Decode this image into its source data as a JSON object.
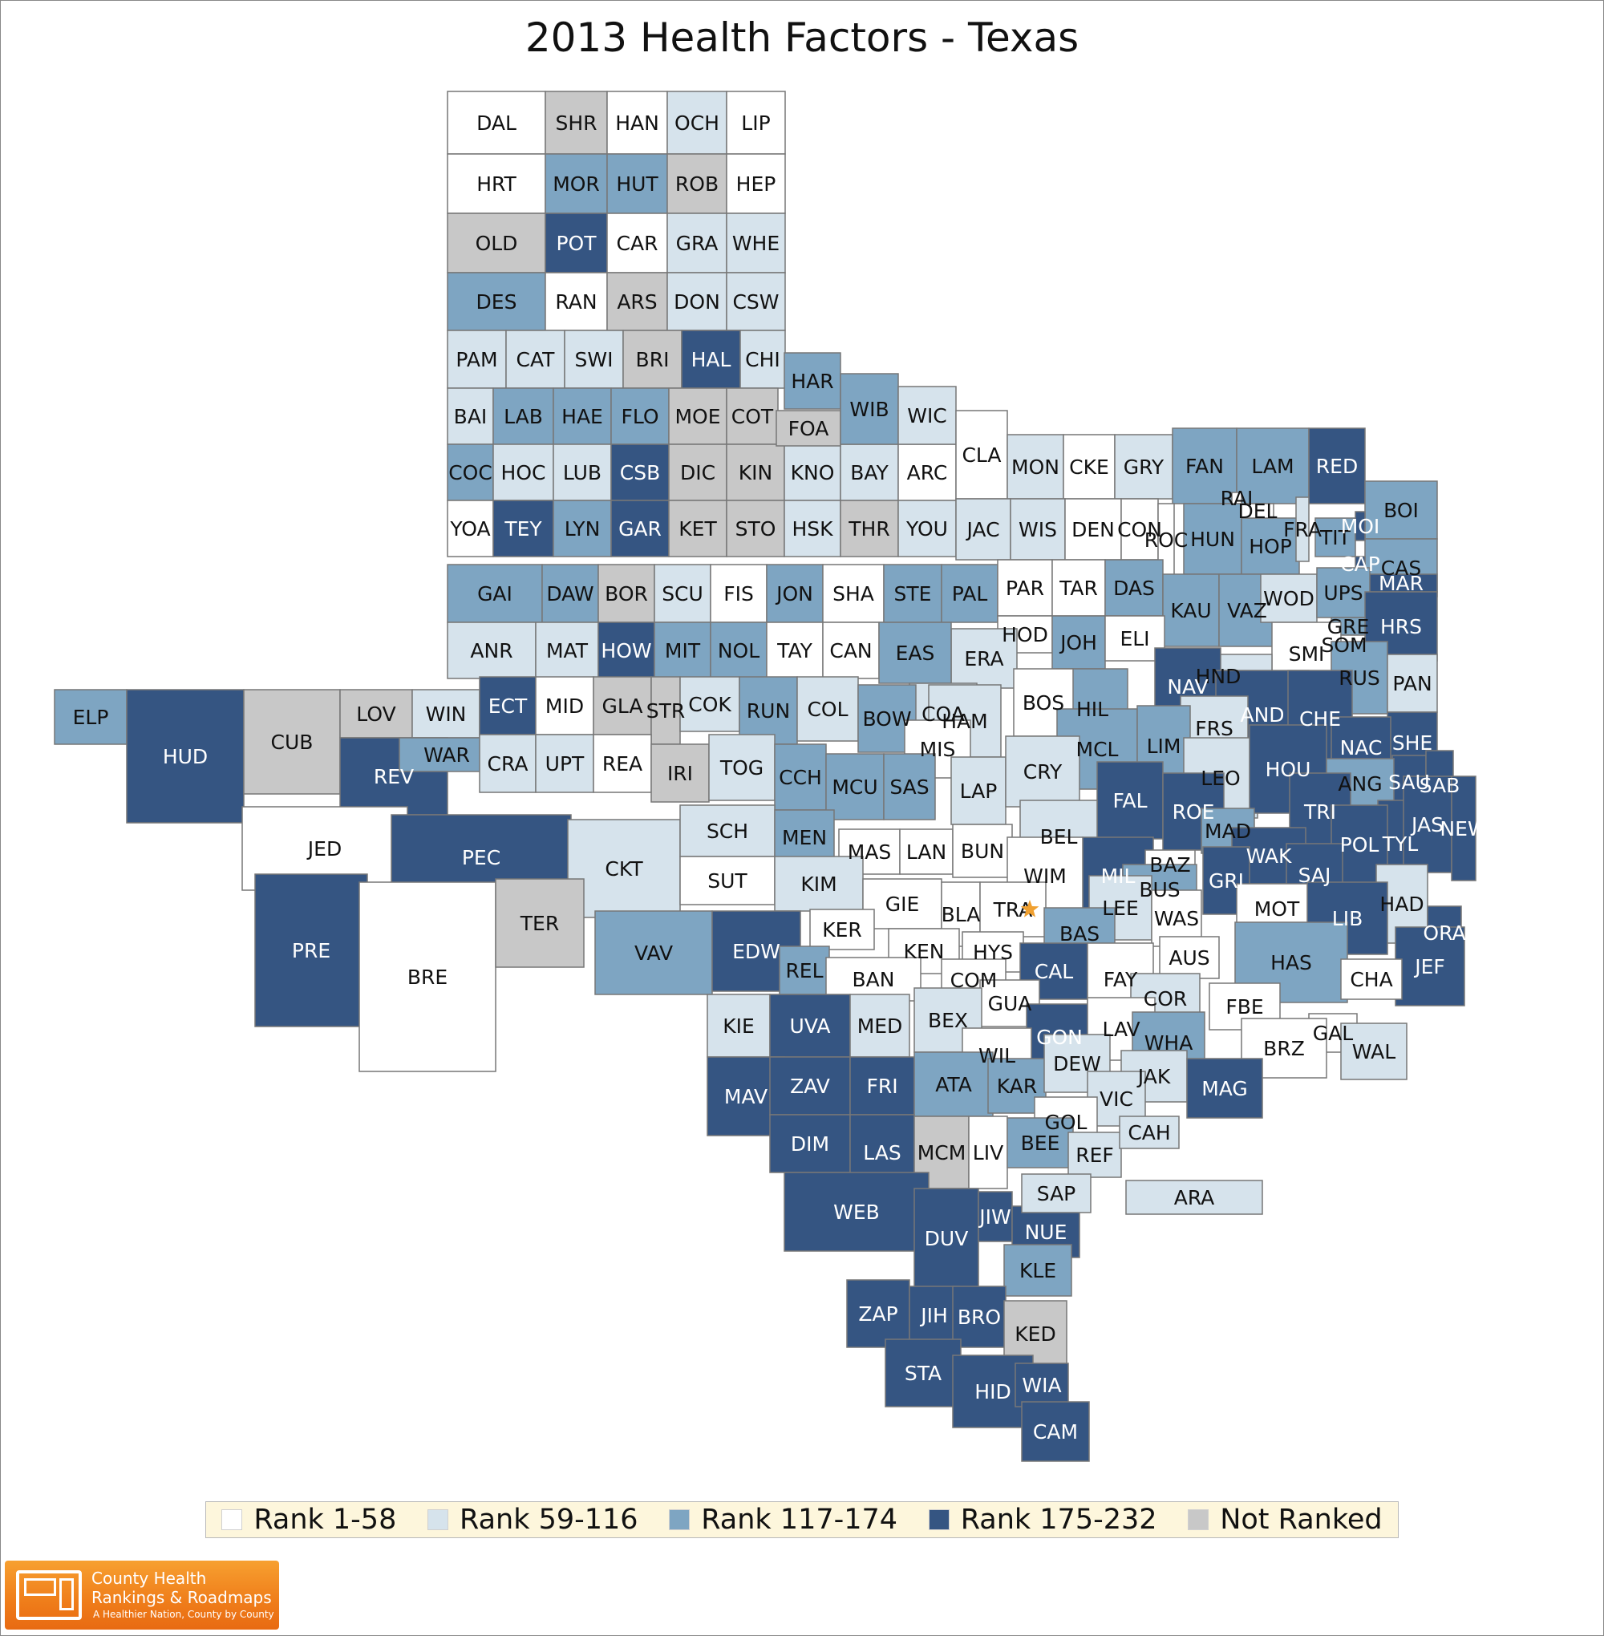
{
  "title": "2013 Health Factors - Texas",
  "colors": {
    "r1": "#ffffff",
    "r2": "#d6e3ec",
    "r3": "#7ea5c2",
    "r4": "#355582",
    "nr": "#c8c8c8",
    "border": "#777777"
  },
  "legend": [
    {
      "label": "Rank 1-58",
      "color": "#ffffff"
    },
    {
      "label": "Rank 59-116",
      "color": "#d6e3ec"
    },
    {
      "label": "Rank 117-174",
      "color": "#7ea5c2"
    },
    {
      "label": "Rank 175-232",
      "color": "#355582"
    },
    {
      "label": "Not Ranked",
      "color": "#c8c8c8"
    }
  ],
  "logo": {
    "line1": "County Health",
    "line2": "Rankings & Roadmaps",
    "line3": "A Healthier Nation, County by County"
  },
  "counties": [
    {
      "abbr": "DAL",
      "rank": "r1"
    },
    {
      "abbr": "SHR",
      "rank": "nr"
    },
    {
      "abbr": "HAN",
      "rank": "r1"
    },
    {
      "abbr": "OCH",
      "rank": "r2"
    },
    {
      "abbr": "LIP",
      "rank": "r1"
    },
    {
      "abbr": "HRT",
      "rank": "r1"
    },
    {
      "abbr": "MOR",
      "rank": "r3"
    },
    {
      "abbr": "HUT",
      "rank": "r3"
    },
    {
      "abbr": "ROB",
      "rank": "nr"
    },
    {
      "abbr": "HEP",
      "rank": "r1"
    },
    {
      "abbr": "OLD",
      "rank": "nr"
    },
    {
      "abbr": "POT",
      "rank": "r4"
    },
    {
      "abbr": "CAR",
      "rank": "r1"
    },
    {
      "abbr": "GRA",
      "rank": "r2"
    },
    {
      "abbr": "WHE",
      "rank": "r2"
    },
    {
      "abbr": "DES",
      "rank": "r3"
    },
    {
      "abbr": "RAN",
      "rank": "r1"
    },
    {
      "abbr": "ARS",
      "rank": "nr"
    },
    {
      "abbr": "DON",
      "rank": "r2"
    },
    {
      "abbr": "CSW",
      "rank": "r2"
    },
    {
      "abbr": "PAM",
      "rank": "r2"
    },
    {
      "abbr": "CAT",
      "rank": "r2"
    },
    {
      "abbr": "SWI",
      "rank": "r2"
    },
    {
      "abbr": "BRI",
      "rank": "nr"
    },
    {
      "abbr": "HAL",
      "rank": "r4"
    },
    {
      "abbr": "CHI",
      "rank": "r2"
    },
    {
      "abbr": "BAI",
      "rank": "r2"
    },
    {
      "abbr": "LAB",
      "rank": "r3"
    },
    {
      "abbr": "HAE",
      "rank": "r3"
    },
    {
      "abbr": "FLO",
      "rank": "r3"
    },
    {
      "abbr": "MOE",
      "rank": "nr"
    },
    {
      "abbr": "COT",
      "rank": "nr"
    },
    {
      "abbr": "COC",
      "rank": "r3"
    },
    {
      "abbr": "HOC",
      "rank": "r2"
    },
    {
      "abbr": "LUB",
      "rank": "r2"
    },
    {
      "abbr": "CSB",
      "rank": "r4"
    },
    {
      "abbr": "DIC",
      "rank": "nr"
    },
    {
      "abbr": "KIN",
      "rank": "nr"
    },
    {
      "abbr": "KNO",
      "rank": "r2"
    },
    {
      "abbr": "BAY",
      "rank": "r2"
    },
    {
      "abbr": "ARC",
      "rank": "r1"
    },
    {
      "abbr": "YOA",
      "rank": "r1"
    },
    {
      "abbr": "TEY",
      "rank": "r4"
    },
    {
      "abbr": "LYN",
      "rank": "r3"
    },
    {
      "abbr": "GAR",
      "rank": "r4"
    },
    {
      "abbr": "KET",
      "rank": "nr"
    },
    {
      "abbr": "STO",
      "rank": "nr"
    },
    {
      "abbr": "HSK",
      "rank": "r2"
    },
    {
      "abbr": "THR",
      "rank": "nr"
    },
    {
      "abbr": "YOU",
      "rank": "r2"
    },
    {
      "abbr": "GAI",
      "rank": "r3"
    },
    {
      "abbr": "DAW",
      "rank": "r3"
    },
    {
      "abbr": "BOR",
      "rank": "nr"
    },
    {
      "abbr": "SCU",
      "rank": "r2"
    },
    {
      "abbr": "FIS",
      "rank": "r1"
    },
    {
      "abbr": "JON",
      "rank": "r3"
    },
    {
      "abbr": "SHA",
      "rank": "r1"
    },
    {
      "abbr": "STE",
      "rank": "r3"
    },
    {
      "abbr": "PAL",
      "rank": "r3"
    },
    {
      "abbr": "ANR",
      "rank": "r2"
    },
    {
      "abbr": "MAT",
      "rank": "r2"
    },
    {
      "abbr": "HOW",
      "rank": "r4"
    },
    {
      "abbr": "MIT",
      "rank": "r3"
    },
    {
      "abbr": "NOL",
      "rank": "r3"
    },
    {
      "abbr": "TAY",
      "rank": "r1"
    },
    {
      "abbr": "CAN",
      "rank": "r1"
    },
    {
      "abbr": "HAR",
      "rank": "r3"
    },
    {
      "abbr": "FOA",
      "rank": "nr"
    },
    {
      "abbr": "WIB",
      "rank": "r3"
    },
    {
      "abbr": "WIC",
      "rank": "r2"
    },
    {
      "abbr": "CLA",
      "rank": "r1"
    },
    {
      "abbr": "MON",
      "rank": "r2"
    },
    {
      "abbr": "CKE",
      "rank": "r1"
    },
    {
      "abbr": "GRY",
      "rank": "r2"
    },
    {
      "abbr": "FAN",
      "rank": "r3"
    },
    {
      "abbr": "LAM",
      "rank": "r3"
    },
    {
      "abbr": "RED",
      "rank": "r4"
    },
    {
      "abbr": "BOI",
      "rank": "r3"
    },
    {
      "abbr": "TIT",
      "rank": "r3"
    },
    {
      "abbr": "CAS",
      "rank": "r3"
    },
    {
      "abbr": "MOI",
      "rank": "r4"
    },
    {
      "abbr": "CAP",
      "rank": "r4"
    },
    {
      "abbr": "MAR",
      "rank": "r4"
    },
    {
      "abbr": "JAC",
      "rank": "r2"
    },
    {
      "abbr": "WIS",
      "rank": "r2"
    },
    {
      "abbr": "DEN",
      "rank": "r1"
    },
    {
      "abbr": "CON",
      "rank": "r1"
    },
    {
      "abbr": "HUN",
      "rank": "r3"
    },
    {
      "abbr": "HOP",
      "rank": "r3"
    },
    {
      "abbr": "DEL",
      "rank": "r1"
    },
    {
      "abbr": "FRA",
      "rank": "r2"
    },
    {
      "abbr": "RAI",
      "rank": "r1"
    },
    {
      "abbr": "ROC",
      "rank": "r1"
    },
    {
      "abbr": "PAR",
      "rank": "r1"
    },
    {
      "abbr": "TAR",
      "rank": "r1"
    },
    {
      "abbr": "DAS",
      "rank": "r3"
    },
    {
      "abbr": "KAU",
      "rank": "r3"
    },
    {
      "abbr": "VAZ",
      "rank": "r3"
    },
    {
      "abbr": "WOD",
      "rank": "r2"
    },
    {
      "abbr": "UPS",
      "rank": "r3"
    },
    {
      "abbr": "HRS",
      "rank": "r4"
    },
    {
      "abbr": "GRE",
      "rank": "r3"
    },
    {
      "abbr": "SOM",
      "rank": "r1"
    },
    {
      "abbr": "HOD",
      "rank": "r1"
    },
    {
      "abbr": "JOH",
      "rank": "r3"
    },
    {
      "abbr": "ELI",
      "rank": "r1"
    },
    {
      "abbr": "SMI",
      "rank": "r1"
    },
    {
      "abbr": "RUS",
      "rank": "r3"
    },
    {
      "abbr": "PAN",
      "rank": "r2"
    },
    {
      "abbr": "ERA",
      "rank": "r2"
    },
    {
      "abbr": "EAS",
      "rank": "r3"
    },
    {
      "abbr": "HND",
      "rank": "r2"
    },
    {
      "abbr": "NAV",
      "rank": "r4"
    },
    {
      "abbr": "HIL",
      "rank": "r3"
    },
    {
      "abbr": "BOS",
      "rank": "r1"
    },
    {
      "abbr": "COA",
      "rank": "r2"
    },
    {
      "abbr": "AND",
      "rank": "r4"
    },
    {
      "abbr": "CHE",
      "rank": "r4"
    },
    {
      "abbr": "SHE",
      "rank": "r4"
    },
    {
      "abbr": "NAC",
      "rank": "r4"
    },
    {
      "abbr": "SAU",
      "rank": "r4"
    },
    {
      "abbr": "SAB",
      "rank": "r4"
    },
    {
      "abbr": "FRS",
      "rank": "r2"
    },
    {
      "abbr": "ELP",
      "rank": "r3"
    },
    {
      "abbr": "HUD",
      "rank": "r4"
    },
    {
      "abbr": "CUB",
      "rank": "nr"
    },
    {
      "abbr": "LOV",
      "rank": "nr"
    },
    {
      "abbr": "WIN",
      "rank": "r2"
    },
    {
      "abbr": "ECT",
      "rank": "r4"
    },
    {
      "abbr": "MID",
      "rank": "r1"
    },
    {
      "abbr": "GLA",
      "rank": "nr"
    },
    {
      "abbr": "STR",
      "rank": "nr"
    },
    {
      "abbr": "COK",
      "rank": "r2"
    },
    {
      "abbr": "RUN",
      "rank": "r3"
    },
    {
      "abbr": "COL",
      "rank": "r2"
    },
    {
      "abbr": "BOW",
      "rank": "r3"
    },
    {
      "abbr": "HAM",
      "rank": "r2"
    },
    {
      "abbr": "MIS",
      "rank": "r1"
    },
    {
      "abbr": "MCL",
      "rank": "r3"
    },
    {
      "abbr": "LIM",
      "rank": "r3"
    },
    {
      "abbr": "LEO",
      "rank": "r2"
    },
    {
      "abbr": "HOU",
      "rank": "r4"
    },
    {
      "abbr": "ANG",
      "rank": "r3"
    },
    {
      "abbr": "REV",
      "rank": "r4"
    },
    {
      "abbr": "WAR",
      "rank": "r3"
    },
    {
      "abbr": "CRA",
      "rank": "r2"
    },
    {
      "abbr": "UPT",
      "rank": "r2"
    },
    {
      "abbr": "REA",
      "rank": "r1"
    },
    {
      "abbr": "IRI",
      "rank": "nr"
    },
    {
      "abbr": "TOG",
      "rank": "r2"
    },
    {
      "abbr": "CCH",
      "rank": "r3"
    },
    {
      "abbr": "MCU",
      "rank": "r3"
    },
    {
      "abbr": "SAS",
      "rank": "r3"
    },
    {
      "abbr": "LAP",
      "rank": "r2"
    },
    {
      "abbr": "CRY",
      "rank": "r2"
    },
    {
      "abbr": "FAL",
      "rank": "r4"
    },
    {
      "abbr": "ROE",
      "rank": "r4"
    },
    {
      "abbr": "MAD",
      "rank": "r3"
    },
    {
      "abbr": "TRI",
      "rank": "r4"
    },
    {
      "abbr": "TYL",
      "rank": "r4"
    },
    {
      "abbr": "JAS",
      "rank": "r4"
    },
    {
      "abbr": "NEW",
      "rank": "r4"
    },
    {
      "abbr": "POL",
      "rank": "r4"
    },
    {
      "abbr": "JED",
      "rank": "r1"
    },
    {
      "abbr": "PEC",
      "rank": "r4"
    },
    {
      "abbr": "CKT",
      "rank": "r2"
    },
    {
      "abbr": "SCH",
      "rank": "r2"
    },
    {
      "abbr": "MEN",
      "rank": "r3"
    },
    {
      "abbr": "BEL",
      "rank": "r2"
    },
    {
      "abbr": "MIL",
      "rank": "r4"
    },
    {
      "abbr": "WAK",
      "rank": "r4"
    },
    {
      "abbr": "SAJ",
      "rank": "r4"
    },
    {
      "abbr": "GRI",
      "rank": "r4"
    },
    {
      "abbr": "MAS",
      "rank": "r1"
    },
    {
      "abbr": "LAN",
      "rank": "r1"
    },
    {
      "abbr": "BUN",
      "rank": "r1"
    },
    {
      "abbr": "WIM",
      "rank": "r1"
    },
    {
      "abbr": "BAZ",
      "rank": "r1"
    },
    {
      "abbr": "BUS",
      "rank": "r3"
    },
    {
      "abbr": "PRE",
      "rank": "r4"
    },
    {
      "abbr": "BRE",
      "rank": "r1"
    },
    {
      "abbr": "TER",
      "rank": "nr"
    },
    {
      "abbr": "SUT",
      "rank": "r1"
    },
    {
      "abbr": "KIM",
      "rank": "r2"
    },
    {
      "abbr": "GIE",
      "rank": "r1"
    },
    {
      "abbr": "BLA",
      "rank": "r1"
    },
    {
      "abbr": "TRA",
      "rank": "r1"
    },
    {
      "abbr": "LEE",
      "rank": "r2"
    },
    {
      "abbr": "WAS",
      "rank": "r1"
    },
    {
      "abbr": "MOT",
      "rank": "r1"
    },
    {
      "abbr": "HAD",
      "rank": "r2"
    },
    {
      "abbr": "LIB",
      "rank": "r4"
    },
    {
      "abbr": "ORA",
      "rank": "r4"
    },
    {
      "abbr": "VAV",
      "rank": "r3"
    },
    {
      "abbr": "EDW",
      "rank": "r4"
    },
    {
      "abbr": "KER",
      "rank": "r1"
    },
    {
      "abbr": "KEN",
      "rank": "r1"
    },
    {
      "abbr": "HYS",
      "rank": "r1"
    },
    {
      "abbr": "BAS",
      "rank": "r3"
    },
    {
      "abbr": "CAL",
      "rank": "r4"
    },
    {
      "abbr": "AUS",
      "rank": "r1"
    },
    {
      "abbr": "HAS",
      "rank": "r3"
    },
    {
      "abbr": "JEF",
      "rank": "r4"
    },
    {
      "abbr": "CHA",
      "rank": "r1"
    },
    {
      "abbr": "REL",
      "rank": "r3"
    },
    {
      "abbr": "BAN",
      "rank": "r1"
    },
    {
      "abbr": "COM",
      "rank": "r1"
    },
    {
      "abbr": "FAY",
      "rank": "r1"
    },
    {
      "abbr": "COR",
      "rank": "r2"
    },
    {
      "abbr": "FBE",
      "rank": "r1"
    },
    {
      "abbr": "GUA",
      "rank": "r1"
    },
    {
      "abbr": "GAL",
      "rank": "r1"
    },
    {
      "abbr": "WAL",
      "rank": "r2"
    },
    {
      "abbr": "KIE",
      "rank": "r2"
    },
    {
      "abbr": "UVA",
      "rank": "r4"
    },
    {
      "abbr": "MED",
      "rank": "r2"
    },
    {
      "abbr": "BEX",
      "rank": "r2"
    },
    {
      "abbr": "GON",
      "rank": "r4"
    },
    {
      "abbr": "LAV",
      "rank": "r1"
    },
    {
      "abbr": "WHA",
      "rank": "r3"
    },
    {
      "abbr": "BRZ",
      "rank": "r1"
    },
    {
      "abbr": "WIL",
      "rank": "r1"
    },
    {
      "abbr": "MAV",
      "rank": "r4"
    },
    {
      "abbr": "ZAV",
      "rank": "r4"
    },
    {
      "abbr": "FRI",
      "rank": "r4"
    },
    {
      "abbr": "ATA",
      "rank": "r3"
    },
    {
      "abbr": "KAR",
      "rank": "r3"
    },
    {
      "abbr": "DEW",
      "rank": "r2"
    },
    {
      "abbr": "JAK",
      "rank": "r2"
    },
    {
      "abbr": "MAG",
      "rank": "r4"
    },
    {
      "abbr": "VIC",
      "rank": "r2"
    },
    {
      "abbr": "GOL",
      "rank": "r1"
    },
    {
      "abbr": "DIM",
      "rank": "r4"
    },
    {
      "abbr": "LAS",
      "rank": "r4"
    },
    {
      "abbr": "MCM",
      "rank": "nr"
    },
    {
      "abbr": "LIV",
      "rank": "r1"
    },
    {
      "abbr": "BEE",
      "rank": "r3"
    },
    {
      "abbr": "REF",
      "rank": "r2"
    },
    {
      "abbr": "CAH",
      "rank": "r2"
    },
    {
      "abbr": "ARA",
      "rank": "r2"
    },
    {
      "abbr": "WEB",
      "rank": "r4"
    },
    {
      "abbr": "DUV",
      "rank": "r4"
    },
    {
      "abbr": "JIW",
      "rank": "r4"
    },
    {
      "abbr": "NUE",
      "rank": "r4"
    },
    {
      "abbr": "SAP",
      "rank": "r2"
    },
    {
      "abbr": "KLE",
      "rank": "r3"
    },
    {
      "abbr": "ZAP",
      "rank": "r4"
    },
    {
      "abbr": "JIH",
      "rank": "r4"
    },
    {
      "abbr": "BRO",
      "rank": "r4"
    },
    {
      "abbr": "KED",
      "rank": "nr"
    },
    {
      "abbr": "STA",
      "rank": "r4"
    },
    {
      "abbr": "HID",
      "rank": "r4"
    },
    {
      "abbr": "WIA",
      "rank": "r4"
    },
    {
      "abbr": "CAM",
      "rank": "r4"
    }
  ]
}
